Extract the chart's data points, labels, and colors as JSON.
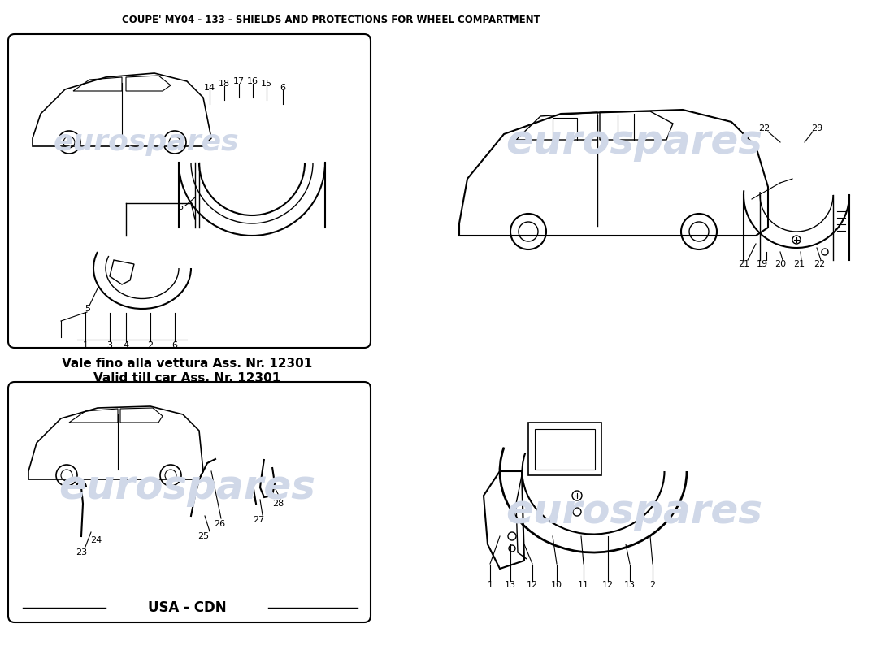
{
  "title": "COUPE' MY04 - 133 - SHIELDS AND PROTECTIONS FOR WHEEL COMPARTMENT",
  "title_fontsize": 8.5,
  "background_color": "#ffffff",
  "watermark_text": "eurospares",
  "watermark_color": "#d0d8e8",
  "watermark_fontsize": 36,
  "note_text1": "Vale fino alla vettura Ass. Nr. 12301",
  "note_text2": "Valid till car Ass. Nr. 12301",
  "note_fontsize": 11,
  "usa_cdn_text": "USA - CDN",
  "usa_cdn_fontsize": 12
}
